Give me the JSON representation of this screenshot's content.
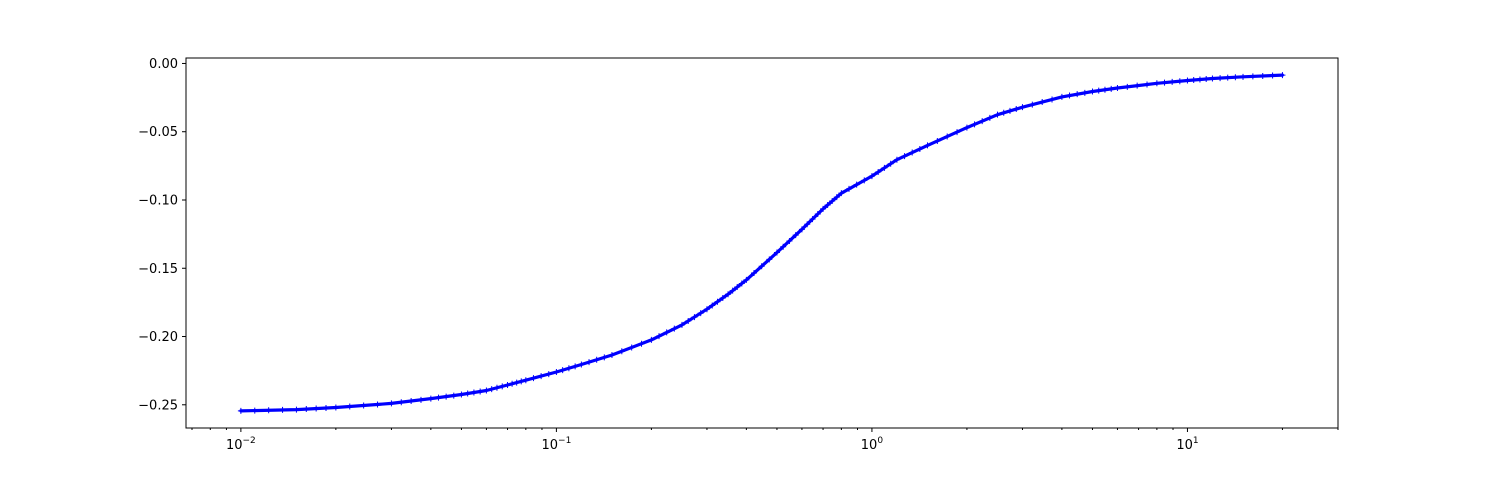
{
  "chart_data": {
    "type": "line",
    "xscale": "log",
    "xlim": [
      0.0067,
      30
    ],
    "ylim": [
      -0.267,
      0.004
    ],
    "grid": false,
    "x_ticks": [
      {
        "value": 0.01,
        "base": "10",
        "exp": "−2"
      },
      {
        "value": 0.1,
        "base": "10",
        "exp": "−1"
      },
      {
        "value": 1,
        "base": "10",
        "exp": "0"
      },
      {
        "value": 10,
        "base": "10",
        "exp": "1"
      }
    ],
    "y_ticks": [
      {
        "value": 0.0,
        "label": "0.00"
      },
      {
        "value": -0.05,
        "label": "−0.05"
      },
      {
        "value": -0.1,
        "label": "−0.10"
      },
      {
        "value": -0.15,
        "label": "−0.15"
      },
      {
        "value": -0.2,
        "label": "−0.20"
      },
      {
        "value": -0.25,
        "label": "−0.25"
      }
    ],
    "series": [
      {
        "color": "#0000ff",
        "marker": "+",
        "x": [
          0.01,
          0.015,
          0.02,
          0.03,
          0.04,
          0.05,
          0.06,
          0.07,
          0.08,
          0.1,
          0.12,
          0.15,
          0.2,
          0.25,
          0.3,
          0.35,
          0.4,
          0.5,
          0.6,
          0.7,
          0.8,
          1.0,
          1.2,
          1.5,
          2.0,
          2.5,
          3.0,
          4.0,
          5.0,
          6.0,
          8.0,
          10.0,
          12.0,
          15.0,
          20.0
        ],
        "y": [
          -0.2545,
          -0.2535,
          -0.252,
          -0.249,
          -0.2455,
          -0.2425,
          -0.2395,
          -0.2355,
          -0.232,
          -0.226,
          -0.2205,
          -0.2135,
          -0.2025,
          -0.1915,
          -0.18,
          -0.169,
          -0.1585,
          -0.1385,
          -0.1215,
          -0.1065,
          -0.095,
          -0.0825,
          -0.0705,
          -0.06,
          -0.047,
          -0.0375,
          -0.032,
          -0.0245,
          -0.0205,
          -0.018,
          -0.0145,
          -0.0125,
          -0.011,
          -0.0098,
          -0.0085
        ]
      }
    ]
  }
}
